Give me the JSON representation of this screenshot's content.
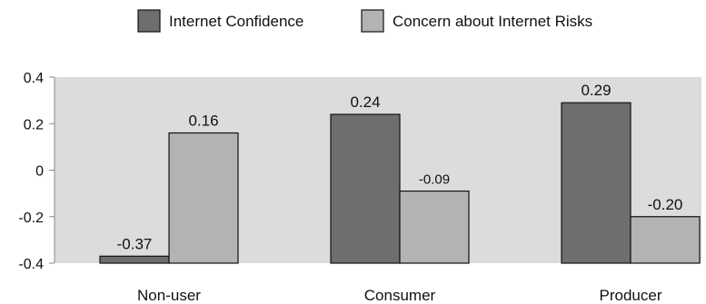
{
  "chart_data": {
    "type": "bar",
    "categories": [
      "Non-user",
      "Consumer",
      "Producer"
    ],
    "series": [
      {
        "name": "Internet Confidence",
        "values": [
          -0.37,
          0.24,
          0.29
        ],
        "labels": [
          "-0.37",
          "0.24",
          "0.29"
        ],
        "color": "#6e6e6e"
      },
      {
        "name": "Concern about Internet Risks",
        "values": [
          0.16,
          -0.09,
          -0.2
        ],
        "labels": [
          "0.16",
          "-0.09",
          "-0.20"
        ],
        "color": "#b3b3b3"
      }
    ],
    "yticks": [
      0.4,
      0.2,
      0,
      -0.2,
      -0.4
    ],
    "ytick_labels": [
      "0.4",
      "0.2",
      "0",
      "-0.2",
      "-0.4"
    ],
    "ylim": [
      -0.4,
      0.4
    ],
    "plot_background": "#dcdcdc",
    "grid": false,
    "legend_position": "top-center",
    "title": "",
    "xlabel": "",
    "ylabel": ""
  }
}
